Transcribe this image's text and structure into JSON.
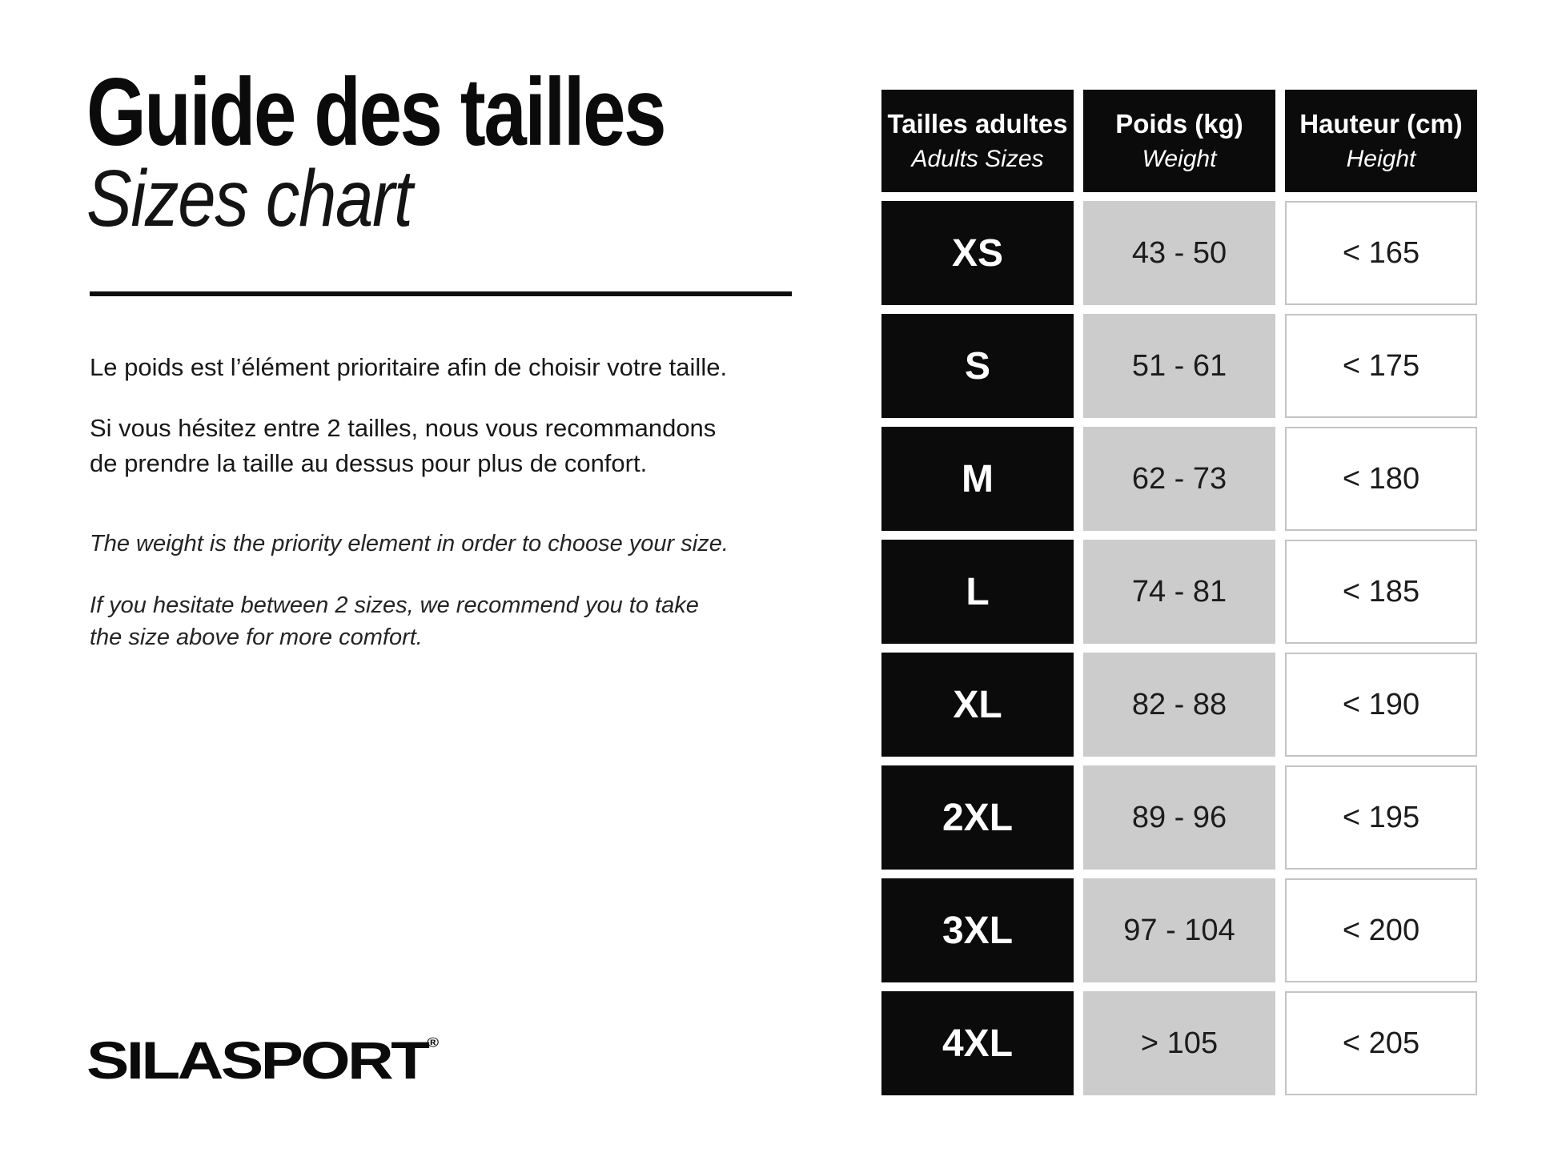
{
  "content": {
    "title_fr": "Guide des tailles",
    "title_en": "Sizes chart",
    "paragraphs": {
      "fr1": {
        "lines": [
          "Le poids est l’élément prioritaire afin de choisir votre taille."
        ]
      },
      "fr2": {
        "lines": [
          "Si vous hésitez entre 2 tailles, nous vous recommandons",
          "de prendre la taille au dessus pour plus de confort."
        ]
      },
      "en1": {
        "lines": [
          "The weight is the priority element in order to choose your size."
        ]
      },
      "en2": {
        "lines": [
          "If you hesitate between 2 sizes, we recommend you to take",
          "the size above for more comfort."
        ]
      }
    },
    "logo_text": "SILASPORT",
    "logo_reg": "®"
  },
  "table": {
    "headers": [
      {
        "fr": "Tailles adultes",
        "en": "Adults Sizes"
      },
      {
        "fr": "Poids (kg)",
        "en": "Weight"
      },
      {
        "fr": "Hauteur (cm)",
        "en": "Height"
      }
    ],
    "rows": [
      {
        "size": "XS",
        "weight": "43 - 50",
        "height": "< 165"
      },
      {
        "size": "S",
        "weight": "51 - 61",
        "height": "< 175"
      },
      {
        "size": "M",
        "weight": "62 - 73",
        "height": "< 180"
      },
      {
        "size": "L",
        "weight": "74 - 81",
        "height": "< 185"
      },
      {
        "size": "XL",
        "weight": "82 - 88",
        "height": "< 190"
      },
      {
        "size": "2XL",
        "weight": "89 - 96",
        "height": "< 195"
      },
      {
        "size": "3XL",
        "weight": "97 - 104",
        "height": "< 200"
      },
      {
        "size": "4XL",
        "weight": "> 105",
        "height": "< 205"
      }
    ]
  },
  "colors": {
    "text_black": "#0b0b0b",
    "cell_black": "#0b0b0b",
    "cell_gray": "#cccccc",
    "cell_border": "#c4c4c4",
    "background": "#ffffff"
  }
}
